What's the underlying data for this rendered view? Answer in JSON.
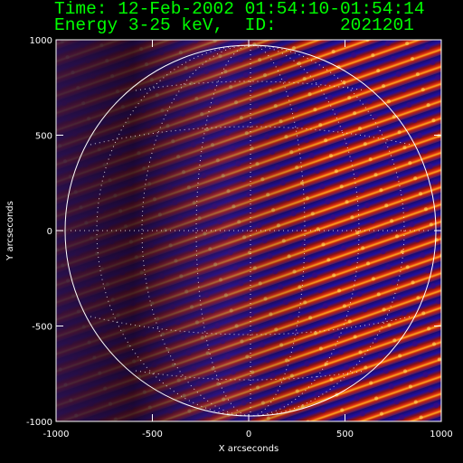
{
  "chart_data": {
    "type": "image",
    "title": "Time: 12-Feb-2002 01:54:10-01:54:14",
    "subtitle": "Energy 3-25 keV,  ID:      2021201",
    "xlabel": "X arcseconds",
    "ylabel": "Y arcseconds",
    "xlim": [
      -1000,
      1000
    ],
    "ylim": [
      -1000,
      1000
    ],
    "xticks": [
      -1000,
      -500,
      0,
      500,
      1000
    ],
    "yticks": [
      -1000,
      -500,
      0,
      500,
      1000
    ]
  }
}
